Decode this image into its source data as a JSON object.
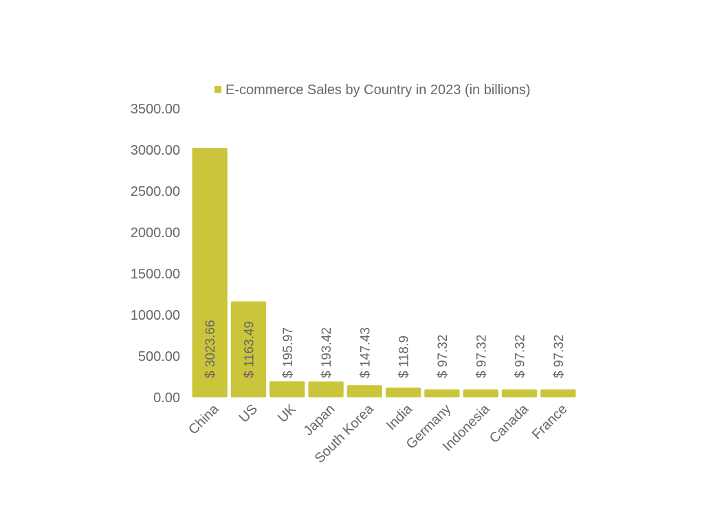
{
  "chart_data": {
    "type": "bar",
    "legend": "top",
    "grid": false,
    "series": [
      {
        "name": "E-commerce Sales by Country in 2023 (in billions)",
        "color": "#cbc53b",
        "values": [
          3023.66,
          1163.49,
          195.97,
          193.42,
          147.43,
          118.9,
          97.32,
          97.32,
          97.32,
          97.32
        ]
      }
    ],
    "categories": [
      "China",
      "US",
      "UK",
      "Japan",
      "South Korea",
      "India",
      "Germany",
      "Indonesia",
      "Canada",
      "France"
    ],
    "data_labels": [
      "$ 3023.66",
      "$ 1163.49",
      "$ 195.97",
      "$ 193.42",
      "$ 147.43",
      "$ 118.9",
      "$ 97.32",
      "$ 97.32",
      "$ 97.32",
      "$ 97.32"
    ],
    "y_ticks": [
      "0.00",
      "500.00",
      "1000.00",
      "1500.00",
      "2000.00",
      "2500.00",
      "3000.00",
      "3500.00"
    ],
    "ylim": [
      0,
      3500
    ]
  }
}
